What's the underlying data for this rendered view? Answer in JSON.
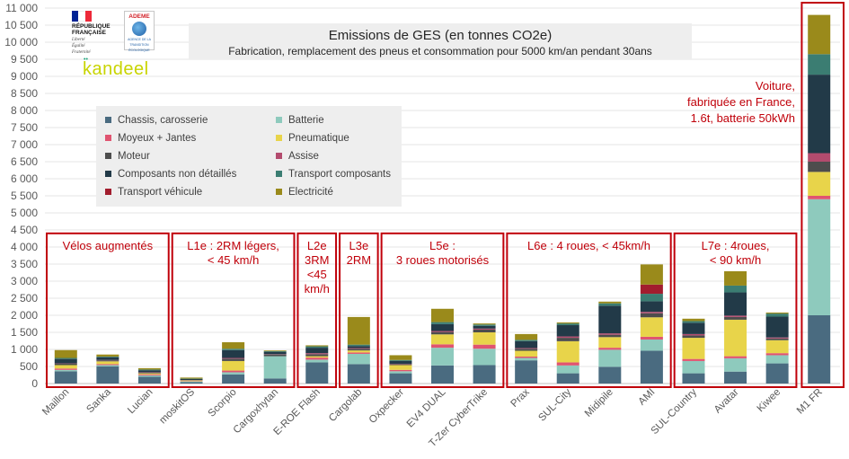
{
  "chart_data": {
    "type": "bar",
    "stacked": true,
    "title": "Emissions de GES (en tonnes CO2e)",
    "subtitle": "Fabrication, remplacement des pneus et consommation pour 5000 km/an pendant 30ans",
    "ylim": [
      0,
      11000
    ],
    "yticks": [
      "0",
      "500",
      "1 000",
      "1 500",
      "2 000",
      "2 500",
      "3 000",
      "3 500",
      "4 000",
      "4 500",
      "5 000",
      "5 500",
      "6 000",
      "6 500",
      "7 000",
      "7 500",
      "8 000",
      "8 500",
      "9 000",
      "9 500",
      "10 000",
      "10 500",
      "11 000"
    ],
    "grid": true,
    "legend_position": "upper-left",
    "categories": [
      "Maillon",
      "Sanka",
      "Lucian",
      "moskitOS",
      "Scorpio",
      "Cargoxhytan",
      "E-ROE Flash",
      "Cargolab",
      "Oxpecker",
      "EV4 DUAL",
      "T-Zer CyberTrike",
      "Prax",
      "SUL-City",
      "Midipile",
      "AMI",
      "SUL-Country",
      "Avatar",
      "Kiwee",
      "M1 FR"
    ],
    "series": [
      {
        "name": "Chassis, carosserie",
        "color": "#4a6b80",
        "values": [
          360,
          500,
          200,
          40,
          270,
          150,
          620,
          570,
          300,
          530,
          540,
          680,
          300,
          490,
          960,
          300,
          350,
          590,
          2000
        ]
      },
      {
        "name": "Batterie",
        "color": "#8ecabd",
        "values": [
          40,
          40,
          40,
          20,
          60,
          650,
          80,
          300,
          60,
          520,
          480,
          70,
          230,
          500,
          330,
          360,
          390,
          240,
          3400
        ]
      },
      {
        "name": "Moyeux + Jantes",
        "color": "#e05470",
        "values": [
          40,
          30,
          30,
          10,
          50,
          0,
          60,
          40,
          40,
          100,
          120,
          40,
          90,
          60,
          80,
          60,
          60,
          60,
          100
        ]
      },
      {
        "name": "Pneumatique",
        "color": "#e8d44a",
        "values": [
          100,
          80,
          30,
          20,
          280,
          0,
          40,
          60,
          140,
          290,
          360,
          170,
          620,
          310,
          570,
          620,
          1070,
          380,
          700
        ]
      },
      {
        "name": "Moteur",
        "color": "#4d4d4d",
        "values": [
          40,
          30,
          20,
          10,
          70,
          50,
          60,
          50,
          30,
          70,
          80,
          60,
          100,
          70,
          120,
          70,
          80,
          50,
          300
        ]
      },
      {
        "name": "Assise",
        "color": "#b34b6e",
        "values": [
          10,
          10,
          10,
          5,
          20,
          10,
          30,
          20,
          10,
          30,
          30,
          20,
          40,
          40,
          40,
          40,
          40,
          30,
          250
        ]
      },
      {
        "name": "Composants non détaillés",
        "color": "#223a48",
        "values": [
          130,
          80,
          60,
          30,
          230,
          70,
          160,
          60,
          80,
          200,
          80,
          200,
          330,
          810,
          310,
          330,
          680,
          610,
          2300
        ]
      },
      {
        "name": "Transport composants",
        "color": "#3b7d72",
        "values": [
          30,
          20,
          20,
          10,
          40,
          20,
          40,
          40,
          30,
          60,
          40,
          40,
          50,
          70,
          220,
          50,
          200,
          90,
          600
        ]
      },
      {
        "name": "Transport véhicule",
        "color": "#a21d2e",
        "values": [
          0,
          0,
          0,
          0,
          0,
          0,
          0,
          0,
          0,
          0,
          0,
          0,
          0,
          0,
          270,
          0,
          0,
          0,
          0
        ]
      },
      {
        "name": "Electricité",
        "color": "#9a8a1b",
        "values": [
          230,
          60,
          40,
          30,
          190,
          20,
          30,
          810,
          140,
          390,
          30,
          170,
          30,
          50,
          590,
          70,
          420,
          30,
          1150
        ]
      }
    ],
    "groups": [
      {
        "label": [
          "Vélos augmentés"
        ],
        "first": 0,
        "last": 2
      },
      {
        "label": [
          "L1e : 2RM légers,",
          "< 45 km/h"
        ],
        "first": 3,
        "last": 5
      },
      {
        "label": [
          "L2e",
          "3RM",
          "<45",
          "km/h"
        ],
        "first": 6,
        "last": 6
      },
      {
        "label": [
          "L3e",
          "2RM"
        ],
        "first": 7,
        "last": 7
      },
      {
        "label": [
          "L5e :",
          "3 roues motorisés"
        ],
        "first": 8,
        "last": 10
      },
      {
        "label": [
          "L6e : 4 roues, < 45km/h"
        ],
        "first": 11,
        "last": 14
      },
      {
        "label": [
          "L7e : 4roues,",
          "< 90 km/h"
        ],
        "first": 15,
        "last": 17
      }
    ],
    "annotation": [
      "Voiture,",
      "fabriquée en France,",
      "1.6t, batterie 50kWh"
    ]
  },
  "logos": {
    "republique": [
      "RÉPUBLIQUE",
      "FRANÇAISE"
    ],
    "devise": [
      "Liberté",
      "Égalité",
      "Fraternité"
    ],
    "ademe": "ADEME",
    "ademe_sub": [
      "AGENCE DE LA",
      "TRANSITION",
      "ÉCOLOGIQUE"
    ],
    "kandeel": "kandeel"
  }
}
